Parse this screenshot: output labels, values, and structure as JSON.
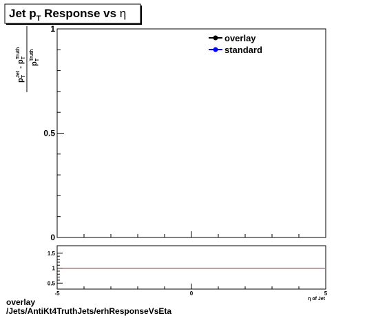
{
  "chart_data": [
    {
      "type": "line",
      "title_main": "Jet p",
      "title_sub": "T",
      "title_rest": " Response vs ",
      "title_eta": "η",
      "ylabel": {
        "num_p": "p",
        "num_sub": "T",
        "num_sup": "Jet",
        "num_minus": " - p",
        "num_sub2": "T",
        "num_sup2": "Truth",
        "den_p": "p",
        "den_sub": "T",
        "den_sup": "Truth"
      },
      "xlim": [
        -5,
        5
      ],
      "ylim": [
        0,
        1
      ],
      "y_ticks": [
        {
          "value": 0,
          "label": "0"
        },
        {
          "value": 0.5,
          "label": "0.5"
        },
        {
          "value": 1,
          "label": "1"
        }
      ],
      "legend_position": "top-right",
      "series": [
        {
          "name": "overlay",
          "color": "#000000",
          "values": []
        },
        {
          "name": "standard",
          "color": "#0000ff",
          "values": []
        }
      ]
    },
    {
      "type": "line",
      "xlim": [
        -5,
        5
      ],
      "ylim": [
        0.3,
        1.75
      ],
      "x_ticks": [
        {
          "value": -5,
          "label": "-5"
        },
        {
          "value": 0,
          "label": "0"
        },
        {
          "value": 5,
          "label": "5"
        }
      ],
      "y_ticks": [
        {
          "value": 0.5,
          "label": "0.5"
        },
        {
          "value": 1,
          "label": "1"
        },
        {
          "value": 1.5,
          "label": "1.5"
        }
      ],
      "xlabel": "η of Jet",
      "reference_line": {
        "y": 1,
        "color": "#cc0000"
      }
    }
  ],
  "footer": {
    "line1": "overlay",
    "line2": "/Jets/AntiKt4TruthJets/erhResponseVsEta"
  }
}
